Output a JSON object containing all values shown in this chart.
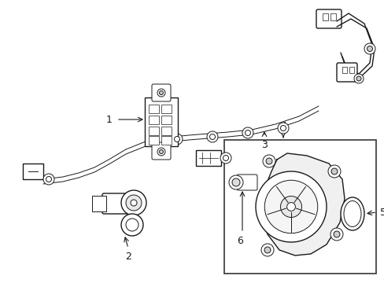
{
  "background_color": "#ffffff",
  "line_color": "#1a1a1a",
  "text_color": "#000000",
  "label_fontsize": 9,
  "figsize": [
    4.89,
    3.6
  ],
  "dpi": 100
}
